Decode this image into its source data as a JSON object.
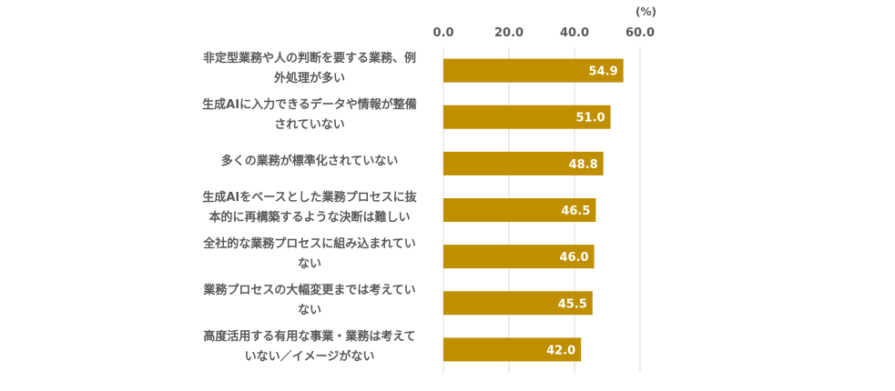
{
  "chart_data": {
    "type": "bar",
    "orientation": "horizontal",
    "unit": "(%)",
    "xlim": [
      0,
      60
    ],
    "ticks": [
      "0.0",
      "20.0",
      "40.0",
      "60.0"
    ],
    "tick_values": [
      0,
      20,
      40,
      60
    ],
    "grid": true,
    "bar_color": "#BF8F00",
    "categories": [
      [
        "非定型業務や人の判断を要する業務、例",
        "外処理が多い"
      ],
      [
        "生成AIに入力できるデータや情報が整備",
        "されていない"
      ],
      [
        "多くの業務が標準化されていない"
      ],
      [
        "生成AIをベースとした業務プロセスに抜",
        "本的に再構築するような決断は難しい"
      ],
      [
        "全社的な業務プロセスに組み込まれてい",
        "ない"
      ],
      [
        "業務プロセスの大幅変更までは考えてい",
        "ない"
      ],
      [
        "高度活用する有用な事業・業務は考えて",
        "いない／イメージがない"
      ]
    ],
    "values": [
      54.9,
      51.0,
      48.8,
      46.5,
      46.0,
      45.5,
      42.0
    ],
    "value_labels": [
      "54.9",
      "51.0",
      "48.8",
      "46.5",
      "46.0",
      "45.5",
      "42.0"
    ]
  }
}
